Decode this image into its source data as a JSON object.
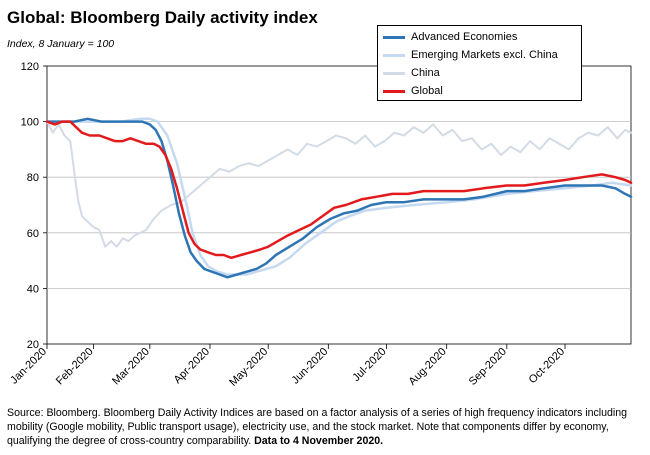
{
  "title": "Global: Bloomberg Daily activity index",
  "subtitle": "Index, 8 January = 100",
  "source": {
    "text": "Source: Bloomberg.  Bloomberg Daily Activity Indices are based on a factor analysis of a series of high frequency indicators including mobility (Google mobility, Public transport usage), electricity use, and the stock market.  Note that components differ by economy, qualifying the degree of cross-country comparability.",
    "bold": "Data to 4 November 2020."
  },
  "chart_data": {
    "type": "line",
    "title": "Global: Bloomberg Daily activity index",
    "ylabel": "",
    "xlabel": "",
    "ylim": [
      20,
      120
    ],
    "yticks": [
      20,
      40,
      60,
      80,
      100,
      120
    ],
    "xlim": [
      "2020-01-08",
      "2020-11-04"
    ],
    "xticks": [
      {
        "date": "2020-01-01",
        "label": "Jan-2020"
      },
      {
        "date": "2020-02-01",
        "label": "Feb-2020"
      },
      {
        "date": "2020-03-01",
        "label": "Mar-2020"
      },
      {
        "date": "2020-04-01",
        "label": "Apr-2020"
      },
      {
        "date": "2020-05-01",
        "label": "May-2020"
      },
      {
        "date": "2020-06-01",
        "label": "Jun-2020"
      },
      {
        "date": "2020-07-01",
        "label": "Jul-2020"
      },
      {
        "date": "2020-08-01",
        "label": "Aug-2020"
      },
      {
        "date": "2020-09-01",
        "label": "Sep-2020"
      },
      {
        "date": "2020-10-01",
        "label": "Oct-2020"
      }
    ],
    "grid": "horizontal",
    "legend_position": "top-right",
    "series": [
      {
        "name": "Advanced Economies",
        "color": "#2e75b6",
        "width": 2.5,
        "points": [
          [
            "2020-01-08",
            100
          ],
          [
            "2020-01-15",
            100
          ],
          [
            "2020-01-22",
            100
          ],
          [
            "2020-01-29",
            101
          ],
          [
            "2020-02-05",
            100
          ],
          [
            "2020-02-12",
            100
          ],
          [
            "2020-02-19",
            100
          ],
          [
            "2020-02-26",
            100
          ],
          [
            "2020-03-01",
            99
          ],
          [
            "2020-03-04",
            97
          ],
          [
            "2020-03-07",
            93
          ],
          [
            "2020-03-10",
            86
          ],
          [
            "2020-03-13",
            77
          ],
          [
            "2020-03-16",
            67
          ],
          [
            "2020-03-19",
            59
          ],
          [
            "2020-03-22",
            53
          ],
          [
            "2020-03-25",
            50
          ],
          [
            "2020-03-29",
            47
          ],
          [
            "2020-04-02",
            46
          ],
          [
            "2020-04-06",
            45
          ],
          [
            "2020-04-10",
            44
          ],
          [
            "2020-04-15",
            45
          ],
          [
            "2020-04-20",
            46
          ],
          [
            "2020-04-25",
            47
          ],
          [
            "2020-04-30",
            49
          ],
          [
            "2020-05-05",
            52
          ],
          [
            "2020-05-12",
            55
          ],
          [
            "2020-05-19",
            58
          ],
          [
            "2020-05-26",
            62
          ],
          [
            "2020-06-02",
            65
          ],
          [
            "2020-06-09",
            67
          ],
          [
            "2020-06-16",
            68
          ],
          [
            "2020-06-23",
            70
          ],
          [
            "2020-07-01",
            71
          ],
          [
            "2020-07-10",
            71
          ],
          [
            "2020-07-20",
            72
          ],
          [
            "2020-08-01",
            72
          ],
          [
            "2020-08-10",
            72
          ],
          [
            "2020-08-20",
            73
          ],
          [
            "2020-09-01",
            75
          ],
          [
            "2020-09-10",
            75
          ],
          [
            "2020-09-20",
            76
          ],
          [
            "2020-10-01",
            77
          ],
          [
            "2020-10-10",
            77
          ],
          [
            "2020-10-20",
            77
          ],
          [
            "2020-10-27",
            76
          ],
          [
            "2020-11-01",
            74
          ],
          [
            "2020-11-04",
            73
          ]
        ]
      },
      {
        "name": "Emerging Markets excl. China",
        "color": "#c5d9f1",
        "width": 2.5,
        "points": [
          [
            "2020-01-08",
            100
          ],
          [
            "2020-01-20",
            100
          ],
          [
            "2020-02-01",
            100
          ],
          [
            "2020-02-15",
            100
          ],
          [
            "2020-02-25",
            101
          ],
          [
            "2020-03-01",
            101
          ],
          [
            "2020-03-05",
            100
          ],
          [
            "2020-03-10",
            95
          ],
          [
            "2020-03-15",
            85
          ],
          [
            "2020-03-20",
            70
          ],
          [
            "2020-03-23",
            60
          ],
          [
            "2020-03-27",
            52
          ],
          [
            "2020-03-31",
            48
          ],
          [
            "2020-04-05",
            46
          ],
          [
            "2020-04-10",
            45
          ],
          [
            "2020-04-15",
            45
          ],
          [
            "2020-04-20",
            45
          ],
          [
            "2020-04-25",
            46
          ],
          [
            "2020-04-30",
            47
          ],
          [
            "2020-05-05",
            48
          ],
          [
            "2020-05-12",
            51
          ],
          [
            "2020-05-20",
            56
          ],
          [
            "2020-05-28",
            60
          ],
          [
            "2020-06-05",
            64
          ],
          [
            "2020-06-12",
            66
          ],
          [
            "2020-06-20",
            68
          ],
          [
            "2020-07-01",
            69
          ],
          [
            "2020-07-15",
            70
          ],
          [
            "2020-08-01",
            71
          ],
          [
            "2020-08-15",
            72
          ],
          [
            "2020-09-01",
            74
          ],
          [
            "2020-09-15",
            75
          ],
          [
            "2020-10-01",
            76
          ],
          [
            "2020-10-15",
            77
          ],
          [
            "2020-10-25",
            78
          ],
          [
            "2020-11-04",
            77
          ]
        ]
      },
      {
        "name": "China",
        "color": "#d3dbe6",
        "width": 2,
        "points": [
          [
            "2020-01-08",
            100
          ],
          [
            "2020-01-11",
            96
          ],
          [
            "2020-01-14",
            99
          ],
          [
            "2020-01-17",
            95
          ],
          [
            "2020-01-20",
            93
          ],
          [
            "2020-01-22",
            82
          ],
          [
            "2020-01-24",
            72
          ],
          [
            "2020-01-26",
            66
          ],
          [
            "2020-01-29",
            64
          ],
          [
            "2020-02-01",
            62
          ],
          [
            "2020-02-04",
            61
          ],
          [
            "2020-02-07",
            55
          ],
          [
            "2020-02-10",
            57
          ],
          [
            "2020-02-13",
            55
          ],
          [
            "2020-02-16",
            58
          ],
          [
            "2020-02-19",
            57
          ],
          [
            "2020-02-22",
            59
          ],
          [
            "2020-02-25",
            60
          ],
          [
            "2020-02-28",
            61
          ],
          [
            "2020-03-03",
            65
          ],
          [
            "2020-03-07",
            68
          ],
          [
            "2020-03-12",
            70
          ],
          [
            "2020-03-17",
            71
          ],
          [
            "2020-03-22",
            74
          ],
          [
            "2020-03-27",
            77
          ],
          [
            "2020-04-01",
            80
          ],
          [
            "2020-04-06",
            83
          ],
          [
            "2020-04-11",
            82
          ],
          [
            "2020-04-16",
            84
          ],
          [
            "2020-04-21",
            85
          ],
          [
            "2020-04-26",
            84
          ],
          [
            "2020-05-01",
            86
          ],
          [
            "2020-05-06",
            88
          ],
          [
            "2020-05-11",
            90
          ],
          [
            "2020-05-16",
            88
          ],
          [
            "2020-05-21",
            92
          ],
          [
            "2020-05-26",
            91
          ],
          [
            "2020-05-31",
            93
          ],
          [
            "2020-06-05",
            95
          ],
          [
            "2020-06-10",
            94
          ],
          [
            "2020-06-15",
            92
          ],
          [
            "2020-06-20",
            95
          ],
          [
            "2020-06-25",
            91
          ],
          [
            "2020-06-30",
            93
          ],
          [
            "2020-07-05",
            96
          ],
          [
            "2020-07-10",
            95
          ],
          [
            "2020-07-15",
            98
          ],
          [
            "2020-07-20",
            96
          ],
          [
            "2020-07-25",
            99
          ],
          [
            "2020-07-30",
            95
          ],
          [
            "2020-08-04",
            97
          ],
          [
            "2020-08-09",
            93
          ],
          [
            "2020-08-14",
            94
          ],
          [
            "2020-08-19",
            90
          ],
          [
            "2020-08-24",
            92
          ],
          [
            "2020-08-29",
            88
          ],
          [
            "2020-09-03",
            91
          ],
          [
            "2020-09-08",
            89
          ],
          [
            "2020-09-13",
            93
          ],
          [
            "2020-09-18",
            90
          ],
          [
            "2020-09-23",
            94
          ],
          [
            "2020-09-28",
            92
          ],
          [
            "2020-10-03",
            90
          ],
          [
            "2020-10-08",
            94
          ],
          [
            "2020-10-13",
            96
          ],
          [
            "2020-10-18",
            95
          ],
          [
            "2020-10-23",
            98
          ],
          [
            "2020-10-28",
            94
          ],
          [
            "2020-11-01",
            97
          ],
          [
            "2020-11-04",
            96
          ]
        ]
      },
      {
        "name": "Global",
        "color": "#e31a1c",
        "width": 2.5,
        "points": [
          [
            "2020-01-08",
            100
          ],
          [
            "2020-01-12",
            99
          ],
          [
            "2020-01-16",
            100
          ],
          [
            "2020-01-20",
            100
          ],
          [
            "2020-01-23",
            98
          ],
          [
            "2020-01-26",
            96
          ],
          [
            "2020-01-30",
            95
          ],
          [
            "2020-02-04",
            95
          ],
          [
            "2020-02-08",
            94
          ],
          [
            "2020-02-12",
            93
          ],
          [
            "2020-02-16",
            93
          ],
          [
            "2020-02-20",
            94
          ],
          [
            "2020-02-24",
            93
          ],
          [
            "2020-02-28",
            92
          ],
          [
            "2020-03-03",
            92
          ],
          [
            "2020-03-06",
            91
          ],
          [
            "2020-03-09",
            88
          ],
          [
            "2020-03-12",
            83
          ],
          [
            "2020-03-15",
            76
          ],
          [
            "2020-03-18",
            68
          ],
          [
            "2020-03-21",
            60
          ],
          [
            "2020-03-24",
            56
          ],
          [
            "2020-03-27",
            54
          ],
          [
            "2020-03-31",
            53
          ],
          [
            "2020-04-04",
            52
          ],
          [
            "2020-04-08",
            52
          ],
          [
            "2020-04-12",
            51
          ],
          [
            "2020-04-17",
            52
          ],
          [
            "2020-04-22",
            53
          ],
          [
            "2020-04-27",
            54
          ],
          [
            "2020-05-01",
            55
          ],
          [
            "2020-05-06",
            57
          ],
          [
            "2020-05-11",
            59
          ],
          [
            "2020-05-17",
            61
          ],
          [
            "2020-05-23",
            63
          ],
          [
            "2020-05-29",
            66
          ],
          [
            "2020-06-04",
            69
          ],
          [
            "2020-06-10",
            70
          ],
          [
            "2020-06-18",
            72
          ],
          [
            "2020-06-26",
            73
          ],
          [
            "2020-07-04",
            74
          ],
          [
            "2020-07-12",
            74
          ],
          [
            "2020-07-20",
            75
          ],
          [
            "2020-08-01",
            75
          ],
          [
            "2020-08-10",
            75
          ],
          [
            "2020-08-20",
            76
          ],
          [
            "2020-09-01",
            77
          ],
          [
            "2020-09-10",
            77
          ],
          [
            "2020-09-20",
            78
          ],
          [
            "2020-10-01",
            79
          ],
          [
            "2020-10-10",
            80
          ],
          [
            "2020-10-20",
            81
          ],
          [
            "2020-10-27",
            80
          ],
          [
            "2020-11-01",
            79
          ],
          [
            "2020-11-04",
            78
          ]
        ]
      }
    ]
  }
}
